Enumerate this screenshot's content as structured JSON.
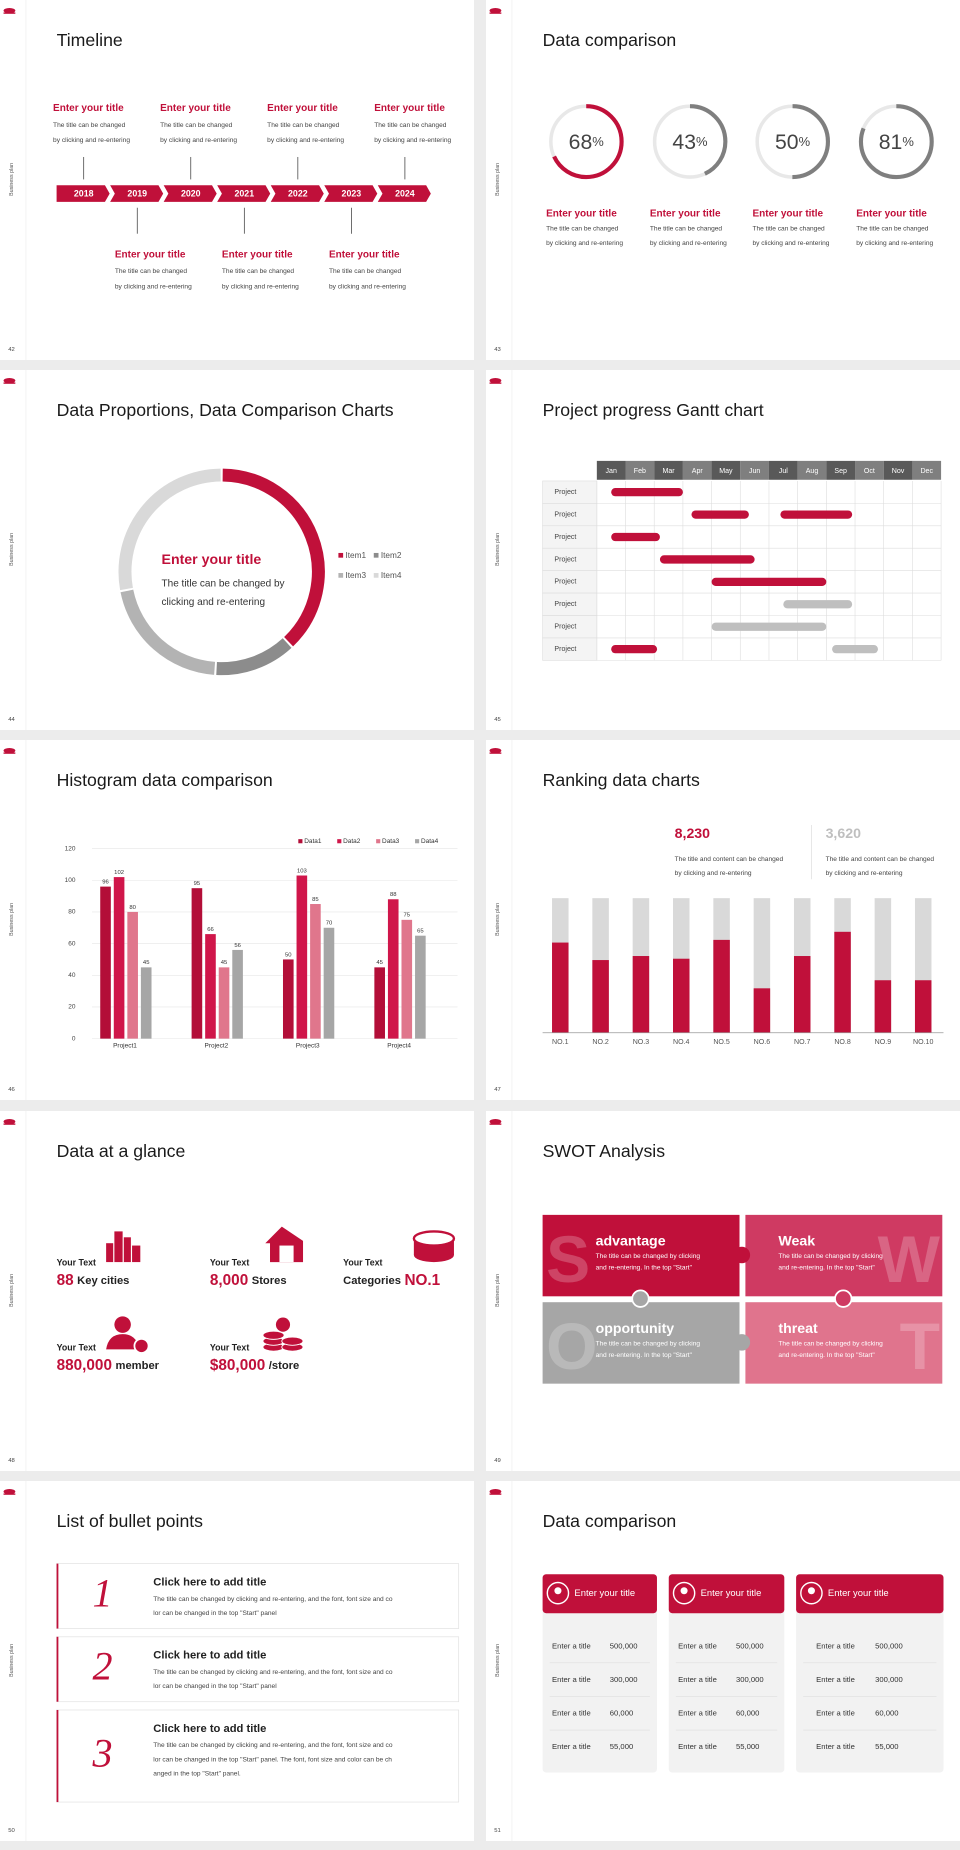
{
  "side_label": "Business plan",
  "slides": [
    {
      "type": "timeline",
      "number": "42",
      "title": "Timeline",
      "color": "#c0103a",
      "years": [
        "2018",
        "2019",
        "2020",
        "2021",
        "2022",
        "2023",
        "2024"
      ],
      "events": [
        {
          "title": "Enter your title",
          "lines": [
            "The title can be changed",
            "by clicking and re-entering"
          ]
        },
        {
          "title": "Enter your title",
          "lines": [
            "The title can be changed",
            "by clicking and re-entering"
          ]
        },
        {
          "title": "Enter your title",
          "lines": [
            "The title can be changed",
            "by clicking and re-entering"
          ]
        },
        {
          "title": "Enter your title",
          "lines": [
            "The title can be changed",
            "by clicking and re-entering"
          ]
        },
        {
          "title": "Enter your title",
          "lines": [
            "The title can be changed",
            "by clicking and re-entering"
          ]
        },
        {
          "title": "Enter your title",
          "lines": [
            "The title can be changed",
            "by clicking and re-entering"
          ]
        },
        {
          "title": "Enter your title",
          "lines": [
            "The title can be changed",
            "by clicking and re-entering"
          ]
        }
      ]
    },
    {
      "type": "rings",
      "number": "43",
      "title": "Data comparison",
      "values": [
        68,
        43,
        50,
        81
      ],
      "unit": "%",
      "colors": [
        "#c0103a",
        "#7f7f7f",
        "#7f7f7f",
        "#7f7f7f"
      ],
      "items": [
        {
          "title": "Enter your title",
          "lines": [
            "The title can be changed",
            "by clicking and re-entering"
          ]
        },
        {
          "title": "Enter your title",
          "lines": [
            "The title can be changed",
            "by clicking and re-entering"
          ]
        },
        {
          "title": "Enter your title",
          "lines": [
            "The title can be changed",
            "by clicking and re-entering"
          ]
        },
        {
          "title": "Enter your title",
          "lines": [
            "The title can be changed",
            "by clicking and re-entering"
          ]
        }
      ]
    },
    {
      "type": "donut",
      "number": "44",
      "title": "Data Proportions, Data Comparison Charts",
      "categories": [
        "Item1",
        "Item2",
        "Item3",
        "Item4"
      ],
      "values": [
        38,
        13,
        21,
        28
      ],
      "colors": [
        "#c0103a",
        "#8c8c8c",
        "#b3b3b3",
        "#d9d9d9"
      ],
      "center_title": "Enter your title",
      "center_lines": [
        "The title can be changed by",
        "clicking and re-entering"
      ]
    },
    {
      "type": "gantt",
      "number": "45",
      "title": "Project progress Gantt chart",
      "months": [
        "Jan",
        "Feb",
        "Mar",
        "Apr",
        "May",
        "Jun",
        "Jul",
        "Aug",
        "Sep",
        "Oct",
        "Nov",
        "Dec"
      ],
      "rows": [
        {
          "label": "Project",
          "bars": [
            {
              "start": 0.5,
              "end": 3,
              "color": "#c0103a"
            }
          ]
        },
        {
          "label": "Project",
          "bars": [
            {
              "start": 3.3,
              "end": 5.3,
              "color": "#c0103a"
            },
            {
              "start": 6.4,
              "end": 8.9,
              "color": "#c0103a"
            }
          ]
        },
        {
          "label": "Project",
          "bars": [
            {
              "start": 0.5,
              "end": 2.2,
              "color": "#c0103a"
            }
          ]
        },
        {
          "label": "Project",
          "bars": [
            {
              "start": 2.2,
              "end": 5.5,
              "color": "#c0103a"
            }
          ]
        },
        {
          "label": "Project",
          "bars": [
            {
              "start": 4,
              "end": 8,
              "color": "#c0103a"
            }
          ]
        },
        {
          "label": "Project",
          "bars": [
            {
              "start": 6.5,
              "end": 8.9,
              "color": "#bfbfbf"
            }
          ]
        },
        {
          "label": "Project",
          "bars": [
            {
              "start": 4,
              "end": 8,
              "color": "#bfbfbf"
            }
          ]
        },
        {
          "label": "Project",
          "bars": [
            {
              "start": 0.5,
              "end": 2.1,
              "color": "#c0103a"
            },
            {
              "start": 8.2,
              "end": 9.8,
              "color": "#bfbfbf"
            }
          ]
        }
      ]
    },
    {
      "type": "bar",
      "number": "46",
      "title": "Histogram data comparison",
      "categories": [
        "Project1",
        "Project2",
        "Project3",
        "Project4"
      ],
      "series": [
        {
          "name": "Data1",
          "color": "#b30e38",
          "values": [
            96,
            95,
            50,
            45
          ]
        },
        {
          "name": "Data2",
          "color": "#d0164a",
          "values": [
            102,
            66,
            103,
            88
          ]
        },
        {
          "name": "Data3",
          "color": "#e0768c",
          "values": [
            80,
            45,
            85,
            75
          ]
        },
        {
          "name": "Data4",
          "color": "#a6a6a6",
          "values": [
            45,
            56,
            70,
            65
          ]
        }
      ],
      "ylim": [
        0,
        120
      ],
      "yticks": [
        0,
        20,
        40,
        60,
        80,
        100,
        120
      ],
      "grid": true
    },
    {
      "type": "ranking",
      "number": "47",
      "title": "Ranking data charts",
      "stats": [
        {
          "value": "8,230",
          "color": "#c0103a",
          "lines": [
            "The title and content can be changed",
            "by clicking and re-entering"
          ]
        },
        {
          "value": "3,620",
          "color": "#bfbfbf",
          "lines": [
            "The title and content can be changed",
            "by clicking and re-entering"
          ]
        }
      ],
      "categories": [
        "NO.1",
        "NO.2",
        "NO.3",
        "NO.4",
        "NO.5",
        "NO.6",
        "NO.7",
        "NO.8",
        "NO.9",
        "NO.10"
      ],
      "values": [
        67,
        54,
        57,
        55,
        69,
        33,
        57,
        75,
        39,
        39
      ],
      "ylim": [
        0,
        100
      ],
      "color": "#c0103a",
      "track_color": "#d9d9d9"
    },
    {
      "type": "glance",
      "number": "48",
      "title": "Data at a glance",
      "color": "#c0103a",
      "items": [
        {
          "label": "Your Text",
          "parts": [
            {
              "text": "88",
              "big": true
            },
            {
              "text": "Key cities",
              "big": false
            }
          ]
        },
        {
          "label": "Your Text",
          "parts": [
            {
              "text": "8,000",
              "big": true
            },
            {
              "text": "Stores",
              "big": false
            }
          ]
        },
        {
          "label": "Your Text",
          "parts": [
            {
              "text": "Categories",
              "big": false
            },
            {
              "text": "NO.1",
              "big": true
            }
          ]
        },
        {
          "label": "Your Text",
          "parts": [
            {
              "text": "880,000",
              "big": true
            },
            {
              "text": "member",
              "big": false
            }
          ]
        },
        {
          "label": "Your Text",
          "parts": [
            {
              "text": "$80,000",
              "big": true
            },
            {
              "text": "/store",
              "big": false
            }
          ]
        }
      ]
    },
    {
      "type": "swot",
      "number": "49",
      "title": "SWOT Analysis",
      "blocks": [
        {
          "letter": "S",
          "title": "advantage",
          "color": "#c0103a",
          "lines": [
            "The title can be changed by clicking",
            "and re-entering. In the top \"Start\""
          ]
        },
        {
          "letter": "W",
          "title": "Weak",
          "color": "#cf3a62",
          "lines": [
            "The title can be changed by clicking",
            "and re-entering. In the top \"Start\""
          ]
        },
        {
          "letter": "O",
          "title": "opportunity",
          "color": "#a6a6a6",
          "lines": [
            "The title can be changed by clicking",
            "and re-entering. In the top \"Start\""
          ]
        },
        {
          "letter": "T",
          "title": "threat",
          "color": "#e0748d",
          "lines": [
            "The title can be changed by clicking",
            "and re-entering. In the top \"Start\""
          ]
        }
      ]
    },
    {
      "type": "list",
      "number": "50",
      "title": "List of bullet points",
      "items": [
        {
          "mark": "1",
          "title": "Click here to add title",
          "lines": [
            "The title can be changed by clicking and re-entering, and the font, font size and co",
            "lor can be changed in the top \"Start\" panel"
          ]
        },
        {
          "mark": "2",
          "title": "Click here to add title",
          "lines": [
            "The title can be changed by clicking and re-entering, and the font, font size and co",
            "lor can be changed in the top \"Start\" panel"
          ]
        },
        {
          "mark": "3",
          "title": "Click here to add title",
          "lines": [
            "The title can be changed by clicking and re-entering, and the font, font size and co",
            "lor can be changed in the top \"Start\" panel. The font, font size and color can be ch",
            "anged in the top \"Start\" panel."
          ]
        }
      ]
    },
    {
      "type": "cards",
      "number": "51",
      "title": "Data comparison",
      "cards": [
        {
          "title": "Enter your title",
          "rows": [
            [
              "Enter a title",
              "500,000"
            ],
            [
              "Enter a title",
              "300,000"
            ],
            [
              "Enter a title",
              "60,000"
            ],
            [
              "Enter a title",
              "55,000"
            ]
          ]
        },
        {
          "title": "Enter your title",
          "rows": [
            [
              "Enter a title",
              "500,000"
            ],
            [
              "Enter a title",
              "300,000"
            ],
            [
              "Enter a title",
              "60,000"
            ],
            [
              "Enter a title",
              "55,000"
            ]
          ]
        },
        {
          "title": "Enter your title",
          "rows": [
            [
              "Enter a title",
              "500,000"
            ],
            [
              "Enter a title",
              "300,000"
            ],
            [
              "Enter a title",
              "60,000"
            ],
            [
              "Enter a title",
              "55,000"
            ]
          ]
        }
      ]
    }
  ]
}
